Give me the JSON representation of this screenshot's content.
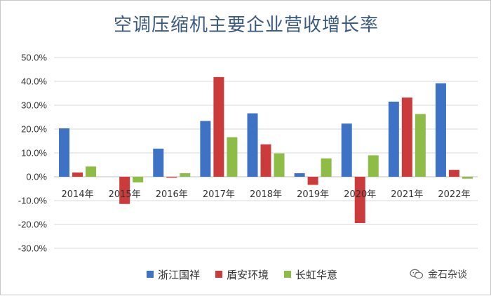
{
  "chart_data": {
    "type": "bar",
    "title": "空调压缩机主要企业营收增长率",
    "categories": [
      "2014年",
      "2015年",
      "2016年",
      "2017年",
      "2018年",
      "2019年",
      "2020年",
      "2021年",
      "2022年"
    ],
    "series": [
      {
        "name": "浙江国祥",
        "color": "#3d72c4",
        "values": [
          20.3,
          0.0,
          11.8,
          23.4,
          26.6,
          1.5,
          22.3,
          31.5,
          39.2
        ]
      },
      {
        "name": "盾安环境",
        "color": "#cc3b3b",
        "values": [
          1.8,
          -11.4,
          -0.4,
          41.8,
          13.6,
          -3.4,
          -19.4,
          33.2,
          2.9
        ]
      },
      {
        "name": "长虹华意",
        "color": "#8ebd47",
        "values": [
          4.3,
          -2.4,
          1.5,
          16.6,
          9.8,
          7.7,
          9.0,
          26.3,
          -0.8
        ]
      }
    ],
    "ylim": [
      -30,
      50
    ],
    "yticks": [
      50,
      40,
      30,
      20,
      10,
      0,
      -10,
      -20,
      -30
    ],
    "ytick_labels": [
      "50.0%",
      "40.0%",
      "30.0%",
      "20.0%",
      "10.0%",
      "0.0%",
      "-10.0%",
      "-20.0%",
      "-30.0%"
    ],
    "grid": true,
    "legend_position": "bottom"
  },
  "watermark": {
    "text": "金石杂谈",
    "icon": "wechat-icon"
  }
}
